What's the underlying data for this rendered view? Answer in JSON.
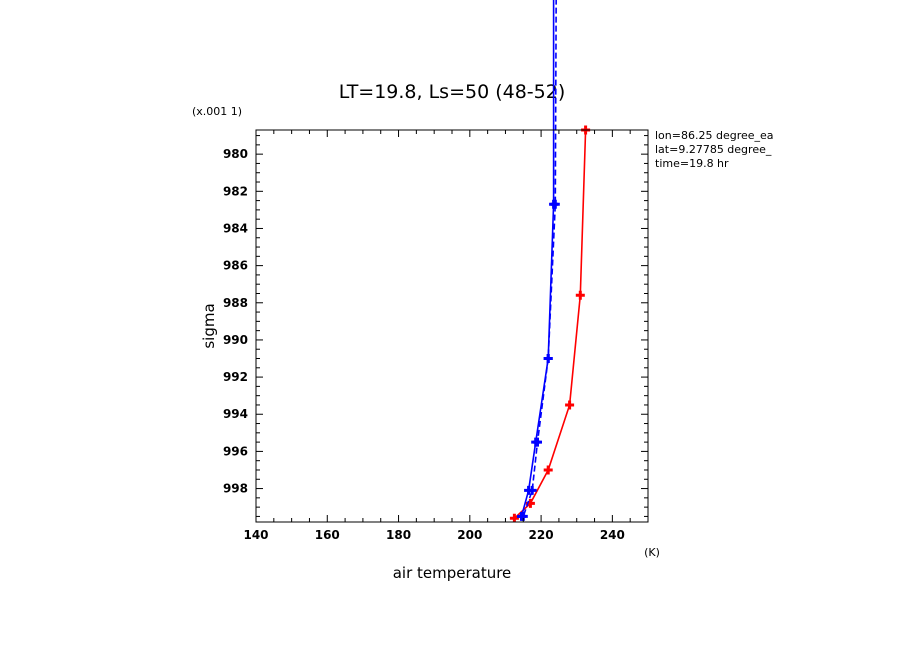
{
  "chart_data": {
    "type": "line",
    "title": "LT=19.8, Ls=50 (48-52)",
    "xlabel": "air temperature",
    "ylabel": "sigma",
    "x_unit": "(K)",
    "y_scale_note": "(x.001 1)",
    "xlim": [
      140,
      250
    ],
    "ylim": [
      999.8,
      978.7
    ],
    "xticks": [
      140,
      160,
      180,
      200,
      220,
      240
    ],
    "yticks": [
      980,
      982,
      984,
      986,
      988,
      990,
      992,
      994,
      996,
      998
    ],
    "grid": false,
    "annotations": [
      "lon=86.25 degree_ea",
      "lat=9.27785 degree_",
      "time=19.8 hr"
    ],
    "series": [
      {
        "color": "#ff0000",
        "style": "solid",
        "marker": "plus",
        "points": [
          [
            232.5,
            978.7
          ],
          [
            231.0,
            987.6
          ],
          [
            228.0,
            993.5
          ],
          [
            222.0,
            997.0
          ],
          [
            217.0,
            998.8
          ],
          [
            212.5,
            999.6
          ]
        ]
      },
      {
        "color": "#0000ff",
        "style": "solid",
        "marker": "plus",
        "points": [
          [
            223.5,
            960.0
          ],
          [
            223.5,
            982.7
          ],
          [
            222.0,
            991.0
          ],
          [
            218.5,
            995.5
          ],
          [
            216.5,
            998.1
          ],
          [
            214.5,
            999.5
          ]
        ]
      },
      {
        "color": "#0000ff",
        "style": "dashed",
        "marker": "plus",
        "points": [
          [
            224.5,
            960.0
          ],
          [
            224.0,
            982.7
          ],
          [
            222.0,
            991.0
          ],
          [
            219.0,
            995.5
          ],
          [
            217.5,
            998.1
          ],
          [
            215.0,
            999.5
          ]
        ]
      }
    ]
  }
}
